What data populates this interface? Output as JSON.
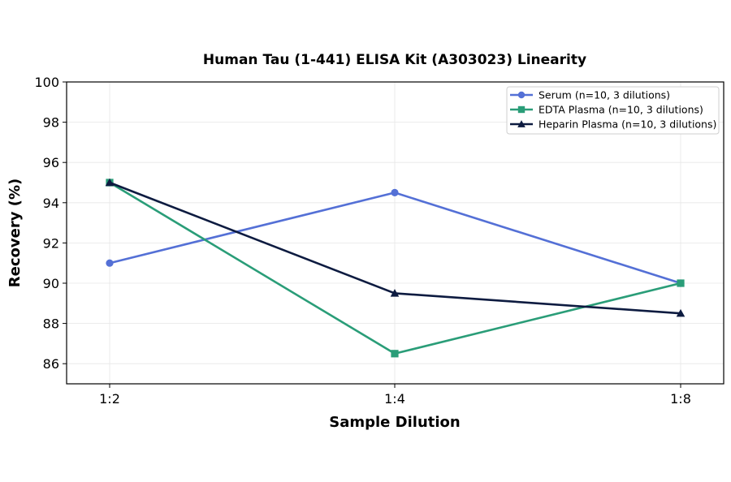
{
  "chart_data": {
    "type": "line",
    "title": "Human Tau (1-441) ELISA Kit (A303023) Linearity",
    "xlabel": "Sample Dilution",
    "ylabel": "Recovery (%)",
    "categories": [
      "1:2",
      "1:4",
      "1:8"
    ],
    "ylim": [
      85,
      100
    ],
    "yticks": [
      86,
      88,
      90,
      92,
      94,
      96,
      98,
      100
    ],
    "grid": true,
    "legend_position": "top-right",
    "series": [
      {
        "name": "Serum (n=10, 3 dilutions)",
        "values": [
          91,
          94.5,
          90
        ],
        "color": "#5470d6",
        "marker": "circle"
      },
      {
        "name": "EDTA Plasma (n=10, 3 dilutions)",
        "values": [
          95,
          86.5,
          90
        ],
        "color": "#2a9d78",
        "marker": "square"
      },
      {
        "name": "Heparin Plasma (n=10, 3 dilutions)",
        "values": [
          95,
          89.5,
          88.5
        ],
        "color": "#0d1b40",
        "marker": "triangle"
      }
    ]
  }
}
